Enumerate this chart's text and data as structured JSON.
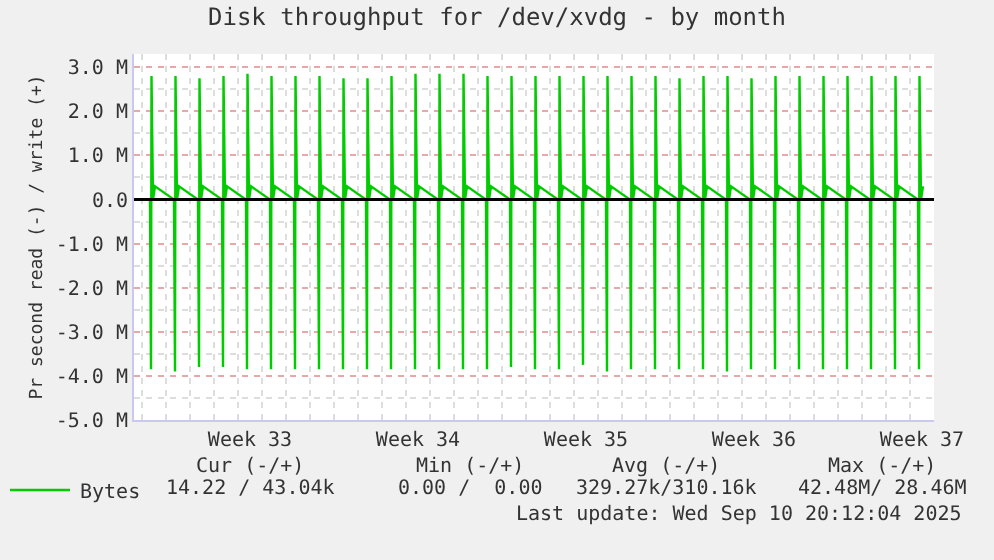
{
  "chart_data": {
    "type": "line",
    "title": "Disk throughput for /dev/xvdg - by month",
    "ylabel": "Pr second read (-) / write (+)",
    "xlim": [
      "2025-08-08T12:00",
      "2025-09-10T20:00"
    ],
    "xticks": [
      {
        "value": "2025-08-09T20:00",
        "label": null
      },
      {
        "value": "2025-08-13T08:00",
        "label": "Week 33"
      },
      {
        "value": "2025-08-16T20:00",
        "label": null
      },
      {
        "value": "2025-08-20T08:00",
        "label": "Week 34"
      },
      {
        "value": "2025-08-23T20:00",
        "label": null
      },
      {
        "value": "2025-08-27T08:00",
        "label": "Week 35"
      },
      {
        "value": "2025-08-30T20:00",
        "label": null
      },
      {
        "value": "2025-09-03T08:00",
        "label": "Week 36"
      },
      {
        "value": "2025-09-06T20:00",
        "label": null
      },
      {
        "value": "2025-09-10T08:00",
        "label": "Week 37"
      }
    ],
    "ylim": [
      -5,
      3.3
    ],
    "yticks": [
      {
        "value": -5,
        "label": "-5.0 M"
      },
      {
        "value": -4,
        "label": "-4.0 M"
      },
      {
        "value": -3,
        "label": "-3.0 M"
      },
      {
        "value": -2,
        "label": "-2.0 M"
      },
      {
        "value": -1,
        "label": "-1.0 M"
      },
      {
        "value": 0,
        "label": "0.0"
      },
      {
        "value": 1,
        "label": "1.0 M"
      },
      {
        "value": 2,
        "label": "2.0 M"
      },
      {
        "value": 3,
        "label": "3.0 M"
      }
    ],
    "grid": true,
    "legend": "bottom left",
    "marker": "none",
    "line_style": "solid",
    "ref_lines": [
      {
        "axis": "y",
        "value": 0,
        "label": null,
        "color": "#000000"
      }
    ],
    "series": [
      {
        "name": "Bytes",
        "color": "#00cc00",
        "x": [
          "2025-08-09T04:00",
          "2025-08-09T05:00",
          "2025-08-09T05:30",
          "2025-08-09T07:00",
          "2025-08-09T09:00",
          "2025-08-10T04:00",
          "2025-08-10T05:00",
          "2025-08-10T05:30",
          "2025-08-10T07:00",
          "2025-08-10T09:00",
          "2025-08-11T04:00",
          "2025-08-11T05:00",
          "2025-08-11T05:30",
          "2025-08-11T07:00",
          "2025-08-11T09:00",
          "2025-08-12T04:00",
          "2025-08-12T05:00",
          "2025-08-12T05:30",
          "2025-08-12T07:00",
          "2025-08-12T09:00",
          "2025-08-13T04:00",
          "2025-08-13T05:00",
          "2025-08-13T05:30",
          "2025-08-13T07:00",
          "2025-08-13T09:00",
          "2025-08-14T04:00",
          "2025-08-14T05:00",
          "2025-08-14T05:30",
          "2025-08-14T07:00",
          "2025-08-14T09:00",
          "2025-08-15T04:00",
          "2025-08-15T05:00",
          "2025-08-15T05:30",
          "2025-08-15T07:00",
          "2025-08-15T09:00",
          "2025-08-16T04:00",
          "2025-08-16T05:00",
          "2025-08-16T05:30",
          "2025-08-16T07:00",
          "2025-08-16T09:00",
          "2025-08-17T04:00",
          "2025-08-17T05:00",
          "2025-08-17T05:30",
          "2025-08-17T07:00",
          "2025-08-17T09:00",
          "2025-08-18T04:00",
          "2025-08-18T05:00",
          "2025-08-18T05:30",
          "2025-08-18T07:00",
          "2025-08-18T09:00",
          "2025-08-19T04:00",
          "2025-08-19T05:00",
          "2025-08-19T05:30",
          "2025-08-19T07:00",
          "2025-08-19T09:00",
          "2025-08-20T04:00",
          "2025-08-20T05:00",
          "2025-08-20T05:30",
          "2025-08-20T07:00",
          "2025-08-20T09:00",
          "2025-08-21T04:00",
          "2025-08-21T05:00",
          "2025-08-21T05:30",
          "2025-08-21T07:00",
          "2025-08-21T09:00",
          "2025-08-22T04:00",
          "2025-08-22T05:00",
          "2025-08-22T05:30",
          "2025-08-22T07:00",
          "2025-08-22T09:00",
          "2025-08-23T04:00",
          "2025-08-23T05:00",
          "2025-08-23T05:30",
          "2025-08-23T07:00",
          "2025-08-23T09:00",
          "2025-08-24T04:00",
          "2025-08-24T05:00",
          "2025-08-24T05:30",
          "2025-08-24T07:00",
          "2025-08-24T09:00",
          "2025-08-25T04:00",
          "2025-08-25T05:00",
          "2025-08-25T05:30",
          "2025-08-25T07:00",
          "2025-08-25T09:00",
          "2025-08-26T04:00",
          "2025-08-26T05:00",
          "2025-08-26T05:30",
          "2025-08-26T07:00",
          "2025-08-26T09:00",
          "2025-08-27T04:00",
          "2025-08-27T05:00",
          "2025-08-27T05:30",
          "2025-08-27T07:00",
          "2025-08-27T09:00",
          "2025-08-28T04:00",
          "2025-08-28T05:00",
          "2025-08-28T05:30",
          "2025-08-28T07:00",
          "2025-08-28T09:00",
          "2025-08-29T04:00",
          "2025-08-29T05:00",
          "2025-08-29T05:30",
          "2025-08-29T07:00",
          "2025-08-29T09:00",
          "2025-08-30T04:00",
          "2025-08-30T05:00",
          "2025-08-30T05:30",
          "2025-08-30T07:00",
          "2025-08-30T09:00",
          "2025-08-31T04:00",
          "2025-08-31T05:00",
          "2025-08-31T05:30",
          "2025-08-31T07:00",
          "2025-08-31T09:00",
          "2025-09-01T04:00",
          "2025-09-01T05:00",
          "2025-09-01T05:30",
          "2025-09-01T07:00",
          "2025-09-01T09:00",
          "2025-09-02T04:00",
          "2025-09-02T05:00",
          "2025-09-02T05:30",
          "2025-09-02T07:00",
          "2025-09-02T09:00",
          "2025-09-03T04:00",
          "2025-09-03T05:00",
          "2025-09-03T05:30",
          "2025-09-03T07:00",
          "2025-09-03T09:00",
          "2025-09-04T04:00",
          "2025-09-04T05:00",
          "2025-09-04T05:30",
          "2025-09-04T07:00",
          "2025-09-04T09:00",
          "2025-09-05T04:00",
          "2025-09-05T05:00",
          "2025-09-05T05:30",
          "2025-09-05T07:00",
          "2025-09-05T09:00",
          "2025-09-06T04:00",
          "2025-09-06T05:00",
          "2025-09-06T05:30",
          "2025-09-06T07:00",
          "2025-09-06T09:00",
          "2025-09-07T04:00",
          "2025-09-07T05:00",
          "2025-09-07T05:30",
          "2025-09-07T07:00",
          "2025-09-07T09:00",
          "2025-09-08T04:00",
          "2025-09-08T05:00",
          "2025-09-08T05:30",
          "2025-09-08T07:00",
          "2025-09-08T09:00",
          "2025-09-09T04:00",
          "2025-09-09T05:00",
          "2025-09-09T05:30",
          "2025-09-09T07:00",
          "2025-09-09T09:00",
          "2025-09-10T04:00",
          "2025-09-10T05:00",
          "2025-09-10T05:30",
          "2025-09-10T07:00",
          "2025-09-10T09:00"
        ],
        "values": [
          0,
          -3.85,
          2.8,
          0,
          0.3,
          0,
          -3.9,
          2.8,
          0,
          0.3,
          0,
          -3.8,
          2.75,
          0,
          0.3,
          0,
          -3.8,
          2.8,
          0,
          0.3,
          0,
          -3.85,
          2.85,
          0,
          0.3,
          0,
          -3.85,
          2.8,
          0,
          0.3,
          0,
          -3.85,
          2.8,
          0,
          0.3,
          0,
          -3.85,
          2.8,
          0,
          0.3,
          0,
          -3.85,
          2.75,
          0,
          0.3,
          0,
          -3.85,
          2.75,
          0,
          0.3,
          0,
          -3.85,
          2.8,
          0,
          0.3,
          0,
          -3.85,
          2.85,
          0,
          0.3,
          0,
          -3.85,
          2.85,
          0,
          0.3,
          0,
          -3.85,
          2.85,
          0,
          0.3,
          0,
          -3.85,
          2.8,
          0,
          0.3,
          0,
          -3.8,
          2.8,
          0,
          0.3,
          0,
          -3.85,
          2.8,
          0,
          0.3,
          0,
          -3.85,
          2.8,
          0,
          0.3,
          0,
          -3.75,
          2.8,
          0,
          0.3,
          0,
          -3.9,
          2.8,
          0,
          0.3,
          0,
          -3.85,
          2.8,
          0,
          0.3,
          0,
          -3.85,
          2.8,
          0,
          0.3,
          0,
          -3.85,
          2.75,
          0,
          0.3,
          0,
          -3.85,
          2.8,
          0,
          0.3,
          0,
          -3.9,
          2.8,
          0,
          0.3,
          0,
          -3.85,
          2.75,
          0,
          0.3,
          0,
          -3.85,
          2.8,
          0,
          0.3,
          0,
          -3.85,
          2.8,
          0,
          0.3,
          0,
          -3.85,
          2.8,
          0,
          0.3,
          0,
          -3.85,
          2.8,
          0,
          0.3,
          0,
          -3.85,
          2.8,
          0,
          0.3,
          0,
          -3.85,
          2.8,
          0,
          0.3,
          0,
          -3.85,
          2.8,
          0,
          0.3
        ]
      }
    ],
    "annotations": [
      "Cur (-/+)",
      "Min (-/+)",
      "Avg (-/+)",
      "Max (-/+)",
      "14.22 / 43.04k",
      "0.00 /  0.00",
      "329.27k/310.16k",
      "42.48M/ 28.46M",
      "Last update: Wed Sep 10 20:12:04 2025"
    ]
  }
}
